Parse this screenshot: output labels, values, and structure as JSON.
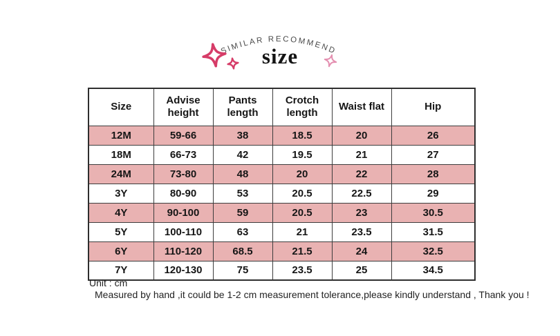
{
  "header": {
    "arc_label": "SIMILAR RECOMMEND",
    "title": "size"
  },
  "table": {
    "columns": [
      "Size",
      "Advise height",
      "Pants length",
      "Crotch length",
      "Waist flat",
      "Hip"
    ],
    "rows": [
      [
        "12M",
        "59-66",
        "38",
        "18.5",
        "20",
        "26"
      ],
      [
        "18M",
        "66-73",
        "42",
        "19.5",
        "21",
        "27"
      ],
      [
        "24M",
        "73-80",
        "48",
        "20",
        "22",
        "28"
      ],
      [
        "3Y",
        "80-90",
        "53",
        "20.5",
        "22.5",
        "29"
      ],
      [
        "4Y",
        "90-100",
        "59",
        "20.5",
        "23",
        "30.5"
      ],
      [
        "5Y",
        "100-110",
        "63",
        "21",
        "23.5",
        "31.5"
      ],
      [
        "6Y",
        "110-120",
        "68.5",
        "21.5",
        "24",
        "32.5"
      ],
      [
        "7Y",
        "120-130",
        "75",
        "23.5",
        "25",
        "34.5"
      ]
    ]
  },
  "footer": {
    "unit": "Unit : cm",
    "note": "Measured by hand ,it could be 1-2 cm measurement tolerance,please kindly understand , Thank you !"
  },
  "colors": {
    "row_pink": "#e9b2b2",
    "sparkle_pink": "#d63c68",
    "sparkle_light_pink": "#e48fb0",
    "arc_text": "#4a4a4a",
    "title_text": "#141414"
  },
  "icons": {
    "sparkle_large": "sparkle-large-icon",
    "sparkle_small": "sparkle-small-icon",
    "sparkle_right": "sparkle-right-icon"
  }
}
